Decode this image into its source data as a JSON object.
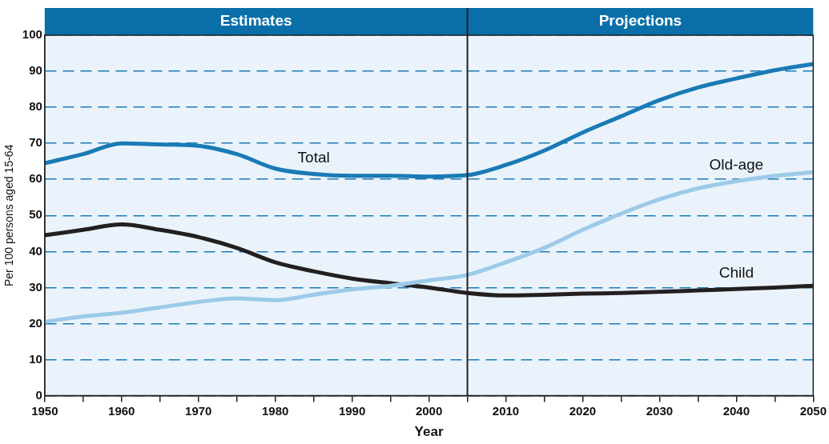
{
  "chart_data": {
    "type": "line",
    "xlabel": "Year",
    "ylabel": "Per 100 persons aged 15-64",
    "x": [
      1950,
      1955,
      1960,
      1965,
      1970,
      1975,
      1980,
      1985,
      1990,
      1995,
      2000,
      2005,
      2010,
      2015,
      2020,
      2025,
      2030,
      2035,
      2040,
      2045,
      2050
    ],
    "series": [
      {
        "name": "Total",
        "color": "#1a7ab5",
        "values": [
          64.5,
          67,
          70,
          69.7,
          69.3,
          67,
          63,
          61.5,
          61,
          61,
          60.8,
          61.2,
          64,
          68,
          73,
          77.5,
          82,
          85.5,
          88,
          90.3,
          92
        ]
      },
      {
        "name": "Old-age",
        "color": "#9ccbe8",
        "values": [
          20.5,
          22,
          23,
          24.5,
          26,
          27,
          26.5,
          28,
          29.5,
          30.5,
          32,
          33.5,
          37,
          41,
          46,
          50.5,
          54.5,
          57.5,
          59.5,
          61,
          62
        ]
      },
      {
        "name": "Child",
        "color": "#231f20",
        "values": [
          44.5,
          46,
          47.5,
          46,
          44,
          41,
          37,
          34.5,
          32.5,
          31.2,
          30,
          28.5,
          27.8,
          28,
          28.3,
          28.5,
          28.8,
          29.2,
          29.6,
          30,
          30.5
        ]
      }
    ],
    "xlim": [
      1950,
      2050
    ],
    "xticks": [
      1950,
      {
        "value": 1955,
        "label": null
      },
      1960,
      {
        "value": 1965,
        "label": null
      },
      1970,
      {
        "value": 1975,
        "label": null
      },
      1980,
      {
        "value": 1985,
        "label": null
      },
      1990,
      {
        "value": 1995,
        "label": null
      },
      2000,
      {
        "value": 2005,
        "label": null
      },
      2010,
      {
        "value": 2015,
        "label": null
      },
      2020,
      {
        "value": 2025,
        "label": null
      },
      2030,
      {
        "value": 2035,
        "label": null
      },
      2040,
      {
        "value": 2045,
        "label": null
      },
      2050
    ],
    "ylim": [
      0,
      100
    ],
    "yticks": [
      0,
      10,
      20,
      30,
      40,
      50,
      60,
      70,
      80,
      90,
      100
    ],
    "grid": "y",
    "line_style": "solid",
    "marker": "none",
    "legend": false,
    "ref_lines": [
      {
        "axis": "x",
        "value": 2005,
        "color": "#231f20"
      }
    ],
    "annotations": [
      "Estimates",
      "Projections"
    ]
  }
}
